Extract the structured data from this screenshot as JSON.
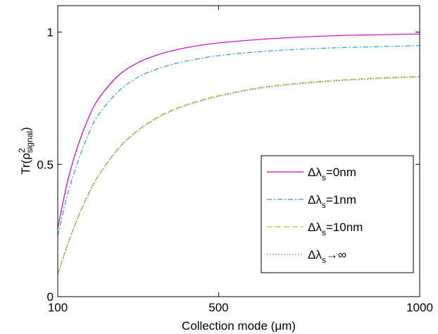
{
  "chart_data": {
    "type": "line",
    "xlabel": "Collection mode (μm)",
    "ylabel": "Tr(ρ²signal)",
    "ylabel_parts": {
      "prefix": "Tr(ρ",
      "sup": "2",
      "sub": "signal",
      "suffix": ")"
    },
    "xlim": [
      100,
      1000
    ],
    "ylim": [
      0,
      1.1
    ],
    "xticks": [
      100,
      500,
      1000
    ],
    "xtick_labels": [
      "100",
      "500",
      "1000"
    ],
    "yticks": [
      0,
      0.5,
      1
    ],
    "ytick_labels": [
      "0",
      "0.5",
      "1"
    ],
    "grid": false,
    "legend_position": "center-right",
    "x": [
      100,
      125,
      150,
      175,
      200,
      250,
      300,
      350,
      400,
      450,
      500,
      600,
      700,
      800,
      900,
      1000
    ],
    "series": [
      {
        "name": "Δλs=0nm",
        "label": {
          "prefix": "Δλ",
          "sub": "s",
          "suffix": "=0nm"
        },
        "color": "#cc00cc",
        "dash": "solid",
        "values": [
          0.26,
          0.44,
          0.57,
          0.67,
          0.745,
          0.835,
          0.885,
          0.915,
          0.935,
          0.949,
          0.959,
          0.972,
          0.981,
          0.987,
          0.99,
          0.993
        ]
      },
      {
        "name": "Δλs=1nm",
        "label": {
          "prefix": "Δλ",
          "sub": "s",
          "suffix": "=1nm"
        },
        "color": "#1f9fd0",
        "dash": "dashdot",
        "values": [
          0.23,
          0.39,
          0.51,
          0.61,
          0.685,
          0.775,
          0.83,
          0.862,
          0.884,
          0.899,
          0.911,
          0.926,
          0.935,
          0.941,
          0.945,
          0.949
        ]
      },
      {
        "name": "Δλs=10nm",
        "label": {
          "prefix": "Δλ",
          "sub": "s",
          "suffix": "=10nm"
        },
        "color": "#9acd32",
        "dash": "dashed",
        "values": [
          0.085,
          0.2,
          0.3,
          0.385,
          0.455,
          0.56,
          0.63,
          0.68,
          0.715,
          0.74,
          0.76,
          0.79,
          0.807,
          0.819,
          0.827,
          0.833
        ]
      },
      {
        "name": "Δλs→∞",
        "label": {
          "prefix": "Δλ",
          "sub": "s",
          "suffix": "→∞"
        },
        "color": "#777777",
        "dash": "dotted",
        "values": [
          0.082,
          0.197,
          0.297,
          0.382,
          0.452,
          0.557,
          0.627,
          0.677,
          0.712,
          0.737,
          0.757,
          0.787,
          0.804,
          0.816,
          0.824,
          0.83
        ]
      }
    ]
  }
}
